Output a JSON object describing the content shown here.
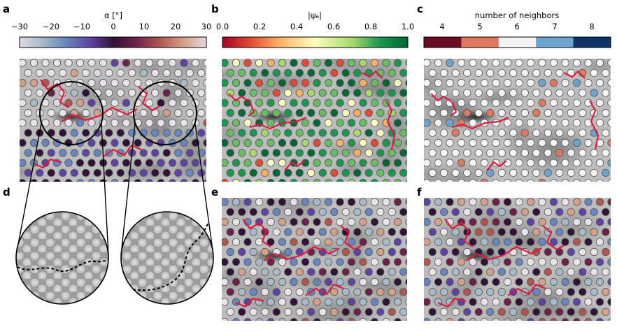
{
  "panels": {
    "a": {
      "letter": "a"
    },
    "b": {
      "letter": "b"
    },
    "c": {
      "letter": "c"
    },
    "d": {
      "letter": "d"
    },
    "e": {
      "letter": "e"
    },
    "f": {
      "letter": "f"
    }
  },
  "colorbars": {
    "alpha": {
      "label": "α [°]",
      "ticks": [
        "−30",
        "−20",
        "−10",
        "0",
        "10",
        "20",
        "30"
      ],
      "range": [
        -30,
        30
      ],
      "colormap": "twilight"
    },
    "psi6": {
      "label": "|ψ₆|",
      "ticks": [
        "0.0",
        "0.2",
        "0.4",
        "0.6",
        "0.8",
        "1.0"
      ],
      "range": [
        0,
        1
      ],
      "colormap": "RdYlGn"
    },
    "neighbors": {
      "label": "number of neighbors",
      "ticks": [
        "4",
        "5",
        "6",
        "7",
        "8"
      ],
      "colors": [
        "#6b0d22",
        "#e07860",
        "#f4f4f4",
        "#6aa4cf",
        "#0d3366"
      ]
    }
  },
  "colors": {
    "defect_line": "#e0193e",
    "boundary_line": "#000000",
    "tile_background": "#bdbdbd"
  }
}
